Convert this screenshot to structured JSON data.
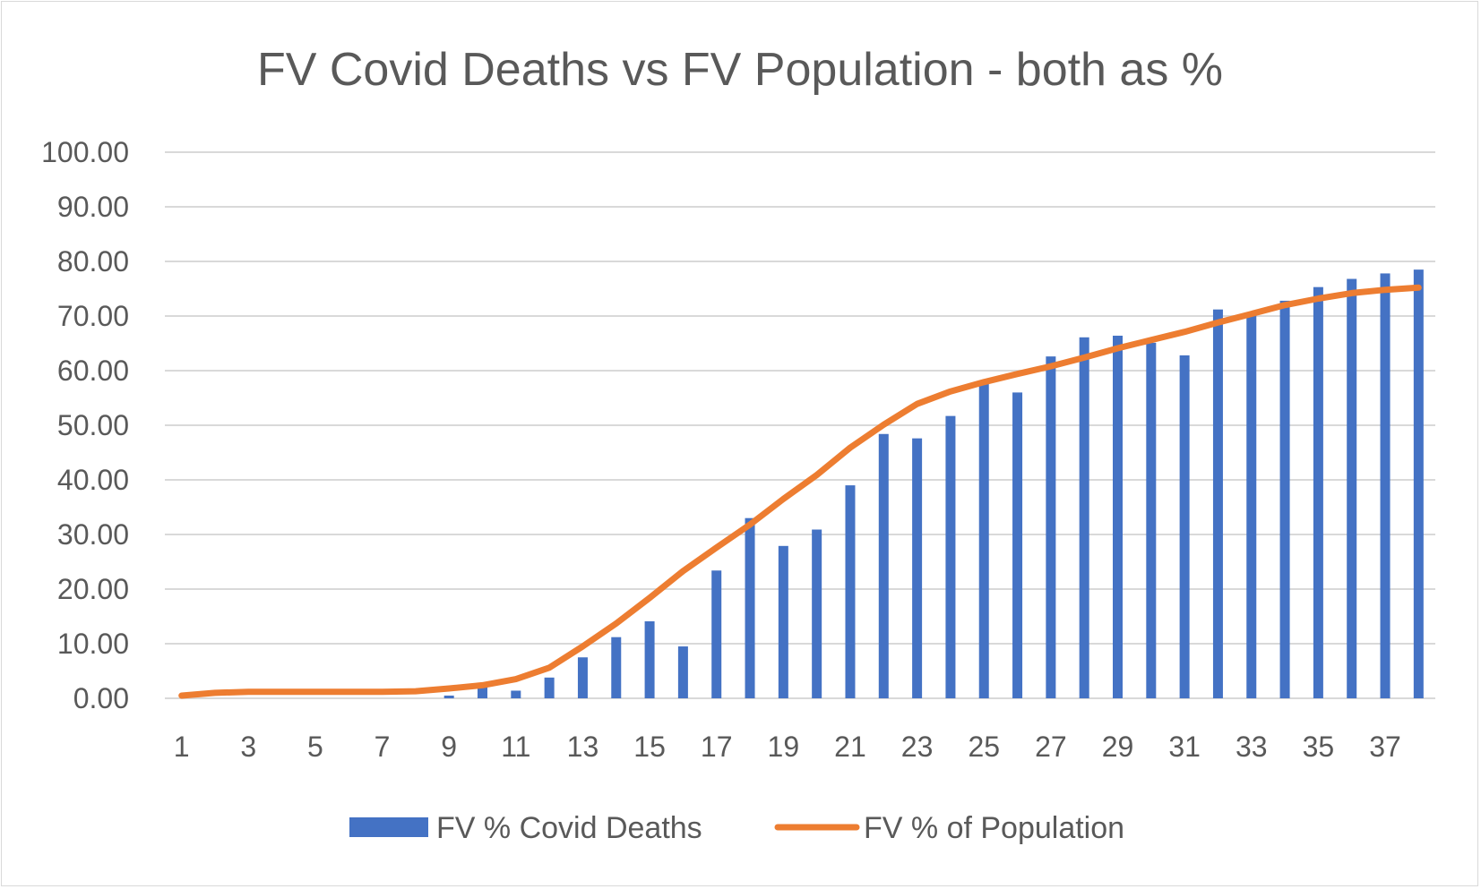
{
  "chart_data": {
    "type": "bar+line",
    "title": "FV Covid Deaths vs FV Population - both as %",
    "xlabel": "",
    "ylabel": "",
    "ylim": [
      0,
      100
    ],
    "y_ticks": [
      "0.00",
      "10.00",
      "20.00",
      "30.00",
      "40.00",
      "50.00",
      "60.00",
      "70.00",
      "80.00",
      "90.00",
      "100.00"
    ],
    "categories": [
      1,
      2,
      3,
      4,
      5,
      6,
      7,
      8,
      9,
      10,
      11,
      12,
      13,
      14,
      15,
      16,
      17,
      18,
      19,
      20,
      21,
      22,
      23,
      24,
      25,
      26,
      27,
      28,
      29,
      30,
      31,
      32,
      33,
      34,
      35,
      36,
      37,
      38
    ],
    "x_tick_labels": [
      "1",
      "3",
      "5",
      "7",
      "9",
      "11",
      "13",
      "15",
      "17",
      "19",
      "21",
      "23",
      "25",
      "27",
      "29",
      "31",
      "33",
      "35",
      "37"
    ],
    "series": [
      {
        "name": "FV % Covid Deaths",
        "kind": "bar",
        "color": "#4472C4",
        "values": [
          0,
          0,
          0,
          0,
          0,
          0,
          0,
          0,
          0.5,
          2,
          1.4,
          3.8,
          7.5,
          11.2,
          14.1,
          9.5,
          23.4,
          33.0,
          27.9,
          30.9,
          39.0,
          48.4,
          47.6,
          51.7,
          57.9,
          56.0,
          62.6,
          66.1,
          66.4,
          65.1,
          62.8,
          71.2,
          70.5,
          72.8,
          75.3,
          76.8,
          77.8,
          78.5
        ]
      },
      {
        "name": "FV % of Population",
        "kind": "line",
        "color": "#ED7D31",
        "values": [
          0.5,
          1.0,
          1.2,
          1.2,
          1.2,
          1.2,
          1.2,
          1.3,
          1.8,
          2.4,
          3.5,
          5.6,
          9.5,
          13.7,
          18.4,
          23.3,
          27.6,
          31.8,
          36.5,
          40.9,
          45.9,
          50.1,
          53.9,
          56.2,
          57.9,
          59.4,
          60.8,
          62.4,
          64.1,
          65.6,
          67.1,
          68.8,
          70.4,
          72.0,
          73.2,
          74.2,
          74.8,
          75.2
        ]
      }
    ],
    "grid": true,
    "legend_position": "bottom"
  }
}
